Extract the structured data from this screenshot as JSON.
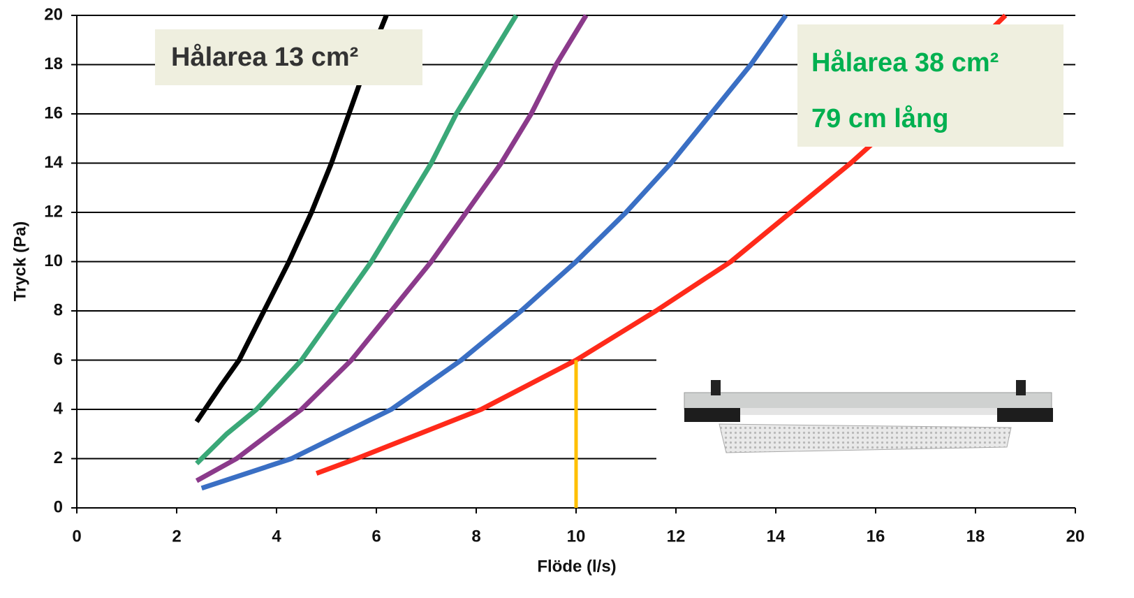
{
  "chart_data": {
    "type": "line",
    "x_label": "Flöde (l/s)",
    "y_label": "Tryck (Pa)",
    "xlim": [
      0,
      20
    ],
    "ylim": [
      0,
      20
    ],
    "xticks": [
      0,
      2,
      4,
      6,
      8,
      10,
      12,
      14,
      16,
      18,
      20
    ],
    "yticks": [
      0,
      2,
      4,
      6,
      8,
      10,
      12,
      14,
      16,
      18,
      20
    ],
    "grid": true,
    "series": [
      {
        "color": "#000000",
        "x": [
          2.4,
          2.9,
          3.25,
          3.75,
          4.25,
          4.7,
          5.1,
          5.45,
          5.8,
          6.2
        ],
        "values": [
          3.5,
          5,
          6,
          8,
          10,
          12,
          14,
          16,
          18,
          20
        ]
      },
      {
        "color": "#3aa878",
        "x": [
          2.4,
          3.0,
          3.6,
          4.5,
          5.2,
          5.9,
          6.5,
          7.1,
          7.6,
          8.2,
          8.8
        ],
        "values": [
          1.8,
          3,
          4,
          6,
          8,
          10,
          12,
          14,
          16,
          18,
          20
        ]
      },
      {
        "color": "#8b3a8b",
        "x": [
          2.4,
          3.2,
          4.5,
          5.5,
          6.3,
          7.1,
          7.8,
          8.5,
          9.1,
          9.6,
          10.2
        ],
        "values": [
          1.1,
          2,
          4,
          6,
          8,
          10,
          12,
          14,
          16,
          18,
          20
        ]
      },
      {
        "color": "#3a6fc4",
        "x": [
          2.5,
          4.3,
          6.3,
          7.7,
          8.9,
          10,
          11,
          11.9,
          12.7,
          13.5,
          14.2
        ],
        "values": [
          0.8,
          2,
          4,
          6,
          8,
          10,
          12,
          14,
          16,
          18,
          20
        ]
      },
      {
        "color": "#ff2a1a",
        "x": [
          4.8,
          5.6,
          8.1,
          10,
          11.6,
          13.1,
          14.3,
          15.5,
          16.6,
          17.6,
          18.6
        ],
        "values": [
          1.4,
          2,
          4,
          6,
          8,
          10,
          12,
          14,
          16,
          18,
          20
        ]
      }
    ],
    "vline": {
      "x": 10,
      "ymax": 6,
      "color": "#ffc000"
    },
    "annotations": [
      {
        "text": "Hålarea 13 cm²",
        "color": "#333333"
      },
      {
        "text": "Hålarea 38 cm²",
        "color": "#00b050"
      },
      {
        "text": "79 cm lång",
        "color": "#00b050"
      }
    ]
  }
}
